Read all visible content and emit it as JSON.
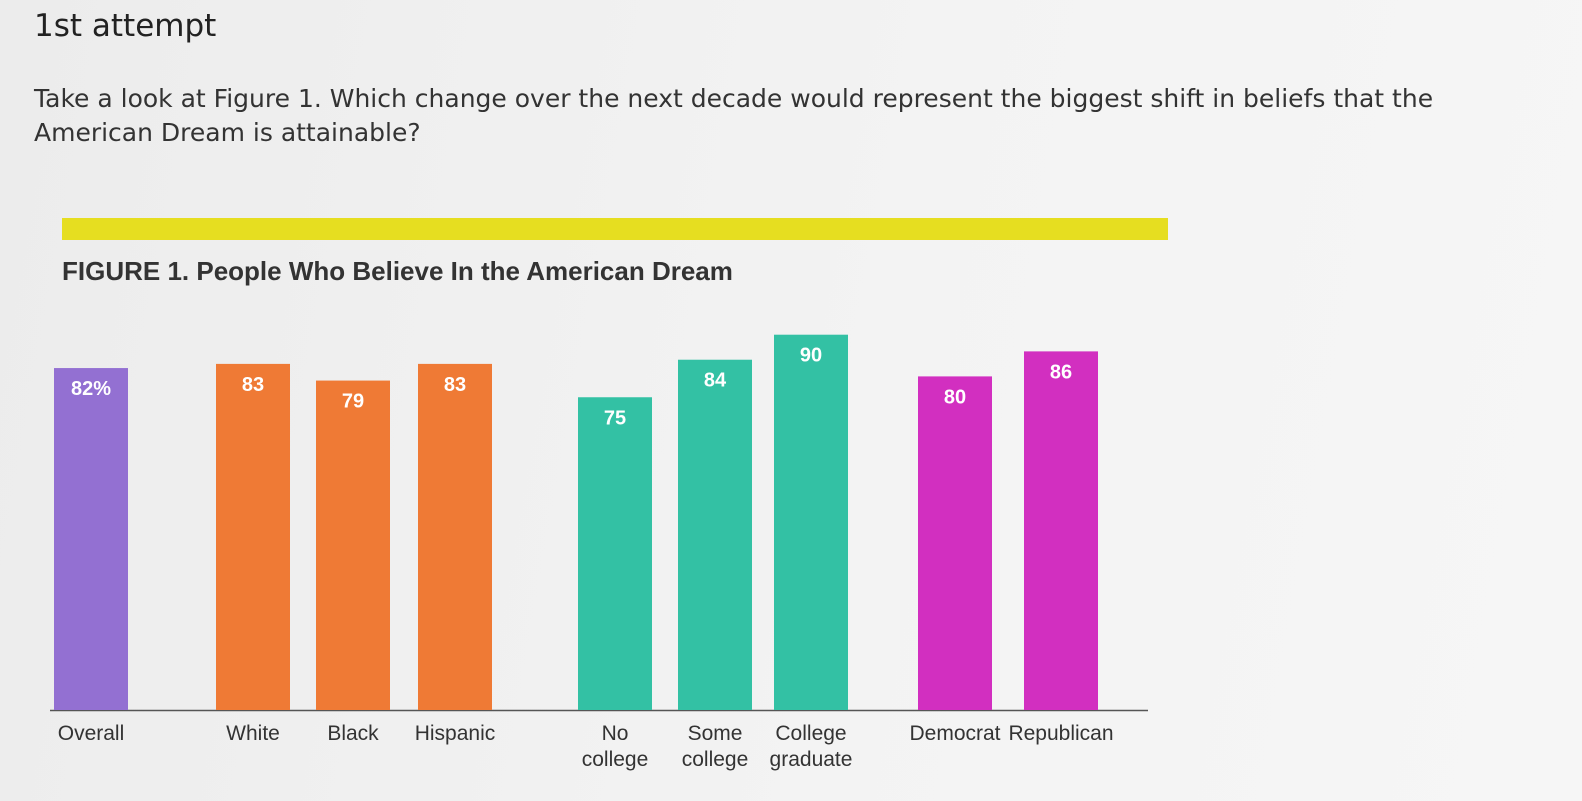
{
  "page": {
    "attempt_label": "1st attempt",
    "question": "Take a look at Figure 1. Which change over the next decade would represent the biggest shift in beliefs that the American Dream is attainable?"
  },
  "colors": {
    "overall": "#9370d2",
    "race": "#ef7a35",
    "education": "#33c1a4",
    "party": "#d22fc0",
    "accent_bar": "#e6de20"
  },
  "chart_data": {
    "type": "bar",
    "title": "FIGURE 1. People Who Believe In the American Dream",
    "xlabel": "",
    "ylabel": "",
    "ylim": [
      0,
      90
    ],
    "grid": false,
    "legend": "none",
    "categories": [
      "Overall",
      "White",
      "Black",
      "Hispanic",
      "No college",
      "Some college",
      "College graduate",
      "Democrat",
      "Republican"
    ],
    "tick_labels": [
      [
        "Overall"
      ],
      [
        "White"
      ],
      [
        "Black"
      ],
      [
        "Hispanic"
      ],
      [
        "No",
        "college"
      ],
      [
        "Some",
        "college"
      ],
      [
        "College",
        "graduate"
      ],
      [
        "Democrat"
      ],
      [
        "Republican"
      ]
    ],
    "groups": [
      "overall",
      "race",
      "race",
      "race",
      "education",
      "education",
      "education",
      "party",
      "party"
    ],
    "values": [
      82,
      83,
      79,
      83,
      75,
      84,
      90,
      80,
      86
    ],
    "value_labels": [
      "82%",
      "83",
      "79",
      "83",
      "75",
      "84",
      "90",
      "80",
      "86"
    ]
  }
}
